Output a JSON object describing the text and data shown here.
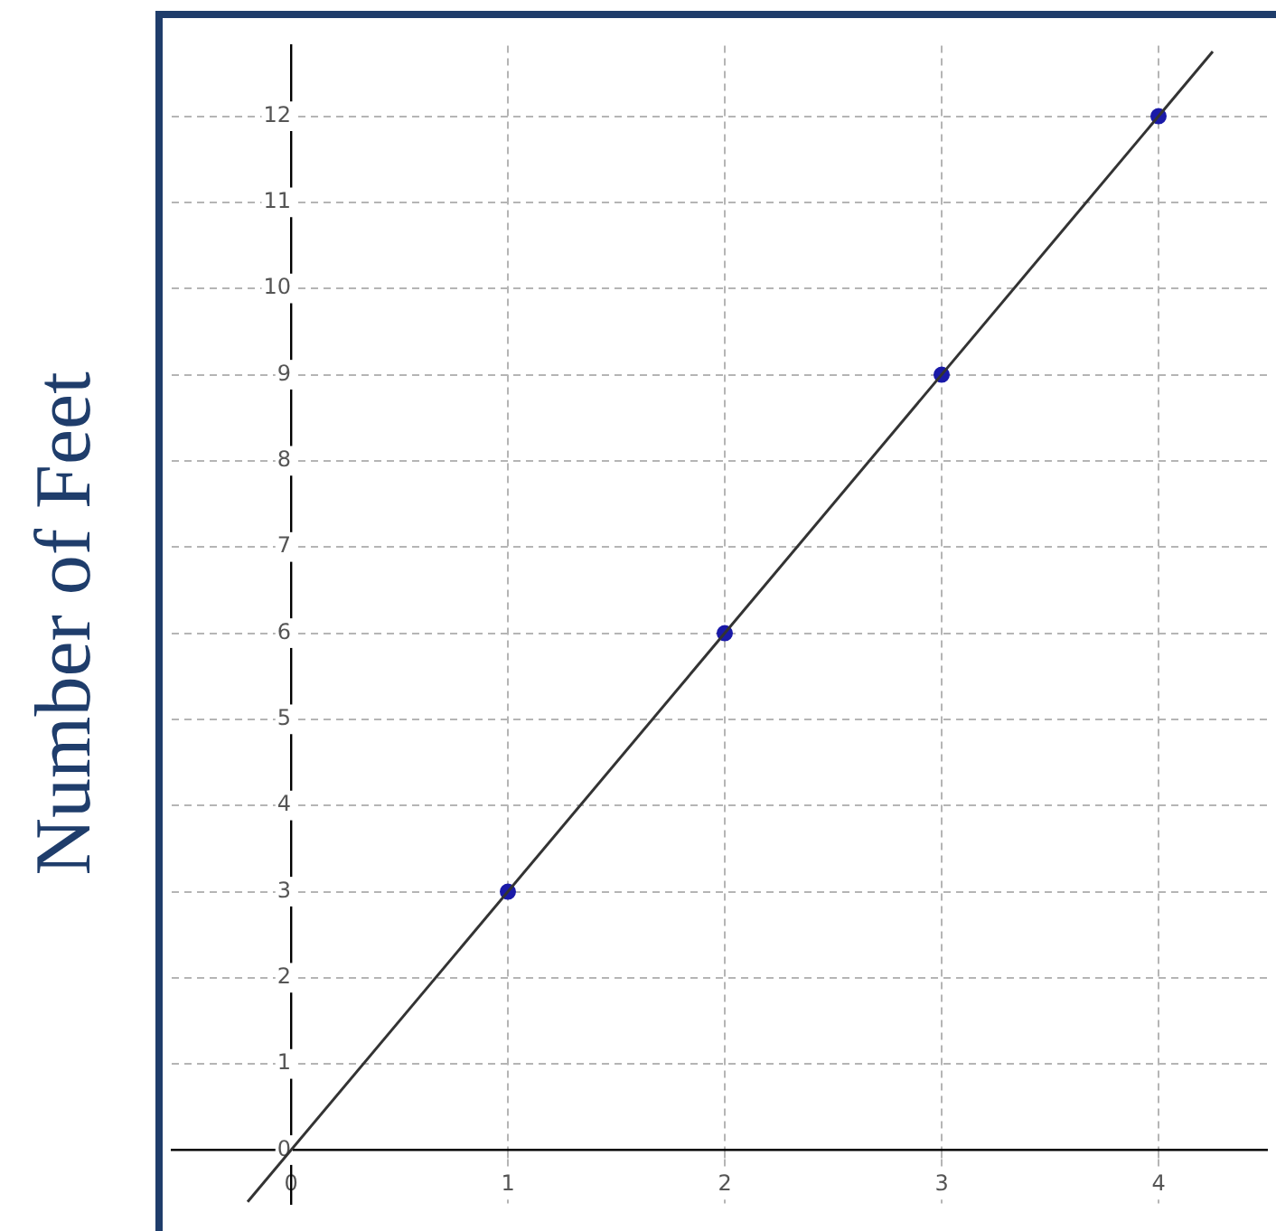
{
  "chart_data": {
    "type": "scatter",
    "ylabel": "Number of Feet",
    "xlim": [
      -0.55,
      4.5
    ],
    "ylim": [
      -0.62,
      12.82
    ],
    "xticks": [
      0,
      1,
      2,
      3,
      4
    ],
    "yticks": [
      0,
      1,
      2,
      3,
      4,
      5,
      6,
      7,
      8,
      9,
      10,
      11,
      12
    ],
    "grid": true,
    "series": [
      {
        "type": "line",
        "color": "#333333",
        "x": [
          -0.2,
          4.25
        ],
        "values": [
          -0.6,
          12.75
        ]
      },
      {
        "type": "scatter",
        "marker": "circle",
        "color": "#1a1aa8",
        "x": [
          1,
          2,
          3,
          4
        ],
        "values": [
          3,
          6,
          9,
          12
        ]
      }
    ]
  }
}
